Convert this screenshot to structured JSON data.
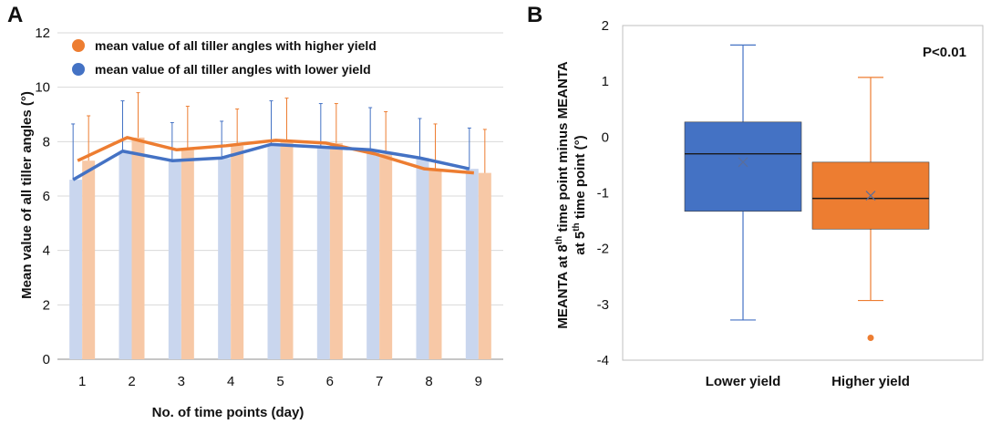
{
  "chart_data": [
    {
      "panel": "A",
      "type": "bar",
      "xlabel": "No. of time points (day)",
      "ylabel": "Mean value of all tiller angles (°)",
      "categories": [
        "1",
        "2",
        "3",
        "4",
        "5",
        "6",
        "7",
        "8",
        "9"
      ],
      "ylim": [
        0,
        12
      ],
      "yticks": [
        "0",
        "2",
        "4",
        "6",
        "8",
        "10",
        "12"
      ],
      "grid": true,
      "legend_position": "top-left",
      "series": [
        {
          "name": "mean value of all tiller angles with lower yield",
          "color": "#4472c4",
          "bar_color": "#c9d6ee",
          "values": [
            6.6,
            7.65,
            7.3,
            7.4,
            7.9,
            7.8,
            7.7,
            7.4,
            7.0
          ],
          "error_upper": [
            8.65,
            9.5,
            8.7,
            8.75,
            9.5,
            9.4,
            9.25,
            8.85,
            8.5
          ]
        },
        {
          "name": "mean value of all tiller angles with higher yield",
          "color": "#ed7d31",
          "bar_color": "#f7c8a6",
          "values": [
            7.3,
            8.15,
            7.7,
            7.85,
            8.05,
            7.95,
            7.55,
            7.0,
            6.85
          ],
          "error_upper": [
            8.95,
            9.8,
            9.3,
            9.2,
            9.6,
            9.4,
            9.1,
            8.65,
            8.45
          ]
        }
      ]
    },
    {
      "panel": "B",
      "type": "box",
      "ylabel_line1": "MEANTA at 8",
      "ylabel_sup1": "th",
      "ylabel_mid1": " time point minus MEANTA",
      "ylabel_line2": "at 5",
      "ylabel_sup2": "th",
      "ylabel_end2": " time point (°)",
      "ylim": [
        -4,
        2
      ],
      "yticks": [
        "-4",
        "-3",
        "-2",
        "-1",
        "0",
        "1",
        "2"
      ],
      "annotation": "P<0.01",
      "categories": [
        "Lower yield",
        "Higher yield"
      ],
      "boxes": [
        {
          "name": "Lower yield",
          "color": "#4472c4",
          "whisker_low": -3.28,
          "q1": -1.33,
          "median": -0.3,
          "mean": -0.45,
          "q3": 0.27,
          "whisker_high": 1.65,
          "outliers": []
        },
        {
          "name": "Higher yield",
          "color": "#ed7d31",
          "whisker_low": -2.93,
          "q1": -1.65,
          "median": -1.1,
          "mean": -1.05,
          "q3": -0.45,
          "whisker_high": 1.07,
          "outliers": [
            -3.6
          ]
        }
      ]
    }
  ]
}
